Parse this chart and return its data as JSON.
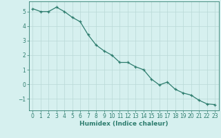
{
  "x": [
    0,
    1,
    2,
    3,
    4,
    5,
    6,
    7,
    8,
    9,
    10,
    11,
    12,
    13,
    14,
    15,
    16,
    17,
    18,
    19,
    20,
    21,
    22,
    23
  ],
  "y": [
    5.2,
    5.0,
    5.0,
    5.3,
    5.0,
    4.6,
    4.3,
    3.4,
    2.7,
    2.3,
    2.0,
    1.5,
    1.5,
    1.2,
    1.0,
    0.35,
    -0.05,
    0.15,
    -0.35,
    -0.6,
    -0.75,
    -1.1,
    -1.35,
    -1.4
  ],
  "line_color": "#2e7d6e",
  "marker": "+",
  "marker_size": 3,
  "bg_color": "#d6f0ef",
  "grid_color": "#b8d8d6",
  "axis_color": "#2e7d6e",
  "xlabel": "Humidex (Indice chaleur)",
  "ylim": [
    -1.8,
    5.7
  ],
  "xlim": [
    -0.5,
    23.5
  ],
  "yticks": [
    -1,
    0,
    1,
    2,
    3,
    4,
    5
  ],
  "xticks": [
    0,
    1,
    2,
    3,
    4,
    5,
    6,
    7,
    8,
    9,
    10,
    11,
    12,
    13,
    14,
    15,
    16,
    17,
    18,
    19,
    20,
    21,
    22,
    23
  ],
  "font_size_xlabel": 6.5,
  "font_size_ticks": 5.5,
  "line_width": 0.9,
  "marker_edge_width": 0.9
}
